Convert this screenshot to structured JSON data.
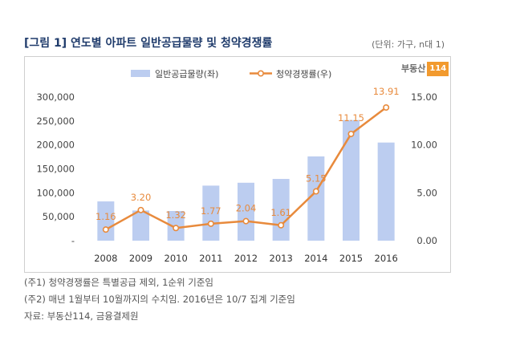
{
  "title": "[그림 1] 연도별 아파트 일반공급물량 및 청약경쟁률",
  "unit_note": "(단위: 가구, n대 1)",
  "logo": {
    "word": "부동산",
    "number": "114",
    "accent": "#f29a2e"
  },
  "chart_data": {
    "type": "bar",
    "categories": [
      "2008",
      "2009",
      "2010",
      "2011",
      "2012",
      "2013",
      "2014",
      "2015",
      "2016"
    ],
    "series": [
      {
        "name": "일반공급물량(좌)",
        "type": "bar",
        "axis": "left",
        "color": "#bccdf0",
        "values": [
          82000,
          63000,
          62000,
          115000,
          121000,
          129000,
          176000,
          252000,
          205000
        ]
      },
      {
        "name": "청약경쟁률(우)",
        "type": "line",
        "axis": "right",
        "color": "#e88a3c",
        "values": [
          1.16,
          3.2,
          1.32,
          1.77,
          2.04,
          1.61,
          5.15,
          11.15,
          13.91
        ],
        "labels": [
          "1.16",
          "3.20",
          "1.32",
          "1.77",
          "2.04",
          "1.61",
          "5.15",
          "11.15",
          "13.91"
        ]
      }
    ],
    "y_left": {
      "min": 0,
      "max": 300000,
      "ticks": [
        0,
        50000,
        100000,
        150000,
        200000,
        250000,
        300000
      ],
      "tick_labels": [
        "-",
        "50,000",
        "100,000",
        "150,000",
        "200,000",
        "250,000",
        "300,000"
      ]
    },
    "y_right": {
      "min": 0,
      "max": 15,
      "ticks": [
        0,
        5,
        10,
        15
      ],
      "tick_labels": [
        "0.00",
        "5.00",
        "10.00",
        "15.00"
      ]
    },
    "grid": false,
    "legend_position": "top-center"
  },
  "notes": [
    "(주1) 청약경쟁률은 특별공급 제외, 1순위 기준임",
    "(주2) 매년 1월부터 10월까지의 수치임. 2016년은 10/7 집계 기준임",
    "자료: 부동산114, 금융결제원"
  ]
}
